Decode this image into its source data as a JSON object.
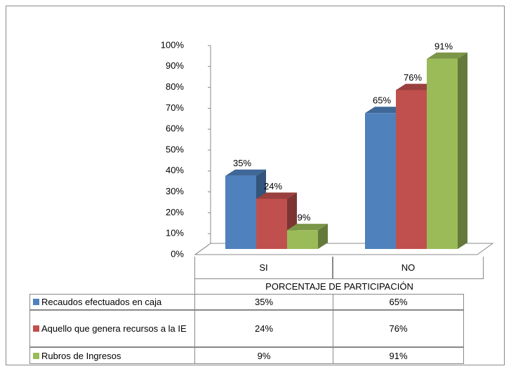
{
  "chart_data": {
    "type": "bar3d",
    "categories": [
      "SI",
      "NO"
    ],
    "x_axis_label": "PORCENTAJE DE PARTICIPACIÓN",
    "series": [
      {
        "name": "Recaudos efectuados en caja",
        "color": "#4f81bd",
        "values": [
          35,
          65
        ],
        "value_labels": [
          "35%",
          "65%"
        ]
      },
      {
        "name": "Aquello que genera recursos a la IE",
        "color": "#c0504d",
        "values": [
          24,
          76
        ],
        "value_labels": [
          "24%",
          "76%"
        ]
      },
      {
        "name": "Rubros de Ingresos",
        "color": "#9bbb59",
        "values": [
          9,
          91
        ],
        "value_labels": [
          "9%",
          "91%"
        ]
      }
    ],
    "ylim": [
      0,
      100
    ],
    "yticks": [
      {
        "value": 0,
        "label": "0%"
      },
      {
        "value": 10,
        "label": "10%"
      },
      {
        "value": 20,
        "label": "20%"
      },
      {
        "value": 30,
        "label": "30%"
      },
      {
        "value": 40,
        "label": "40%"
      },
      {
        "value": 50,
        "label": "50%"
      },
      {
        "value": 60,
        "label": "60%"
      },
      {
        "value": 70,
        "label": "70%"
      },
      {
        "value": 80,
        "label": "80%"
      },
      {
        "value": 90,
        "label": "90%"
      },
      {
        "value": 100,
        "label": "100%"
      }
    ],
    "data_table": true
  }
}
